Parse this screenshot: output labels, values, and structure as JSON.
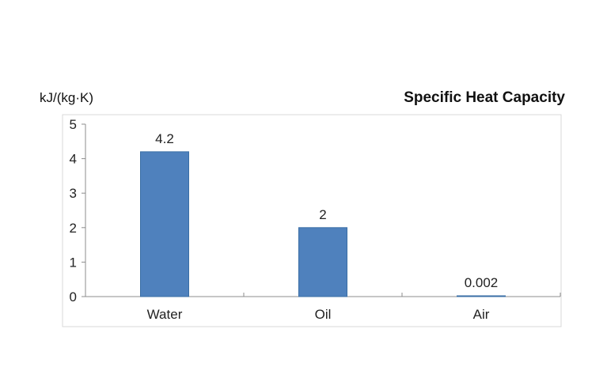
{
  "chart_data": {
    "type": "bar",
    "title": "Specific Heat Capacity",
    "ylabel": "kJ/(kg·K)",
    "xlabel": "",
    "categories": [
      "Water",
      "Oil",
      "Air"
    ],
    "values": [
      4.2,
      2,
      0.002
    ],
    "data_labels": [
      "4.2",
      "2",
      "0.002"
    ],
    "yticks": [
      "0",
      "1",
      "2",
      "3",
      "4",
      "5"
    ],
    "ylim": [
      0,
      5
    ],
    "grid": false,
    "legend": "none",
    "bar_color": "#4f81bd",
    "bar_edge_color": "#3a6ea5",
    "axis_color": "#8c8c8c",
    "frame_color": "#d9d9d9"
  }
}
